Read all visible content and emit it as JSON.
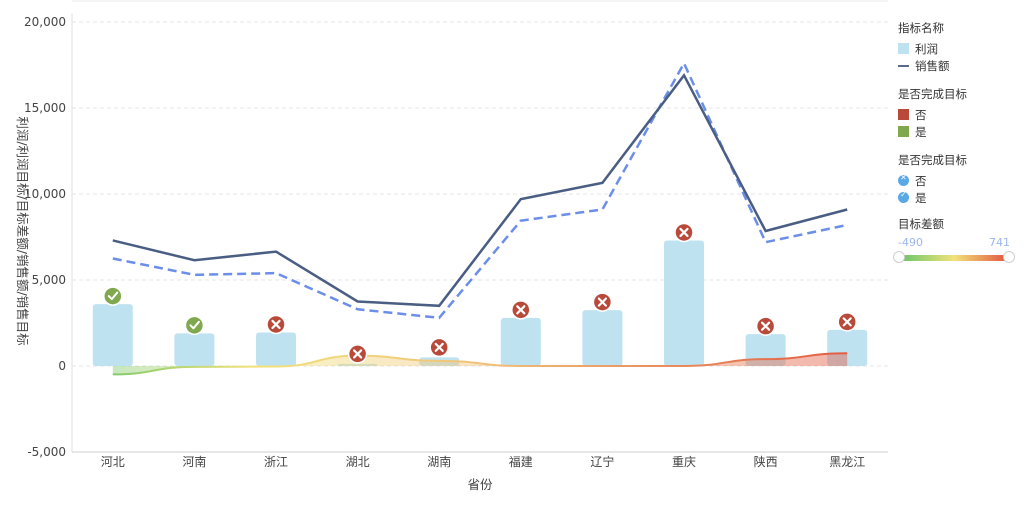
{
  "chart_data": {
    "type": "bar",
    "categories": [
      "河北",
      "河南",
      "浙江",
      "湖北",
      "湖南",
      "福建",
      "辽宁",
      "重庆",
      "陕西",
      "黑龙江"
    ],
    "series": [
      {
        "name": "利润",
        "type": "bar",
        "values": [
          3600,
          1900,
          1950,
          120,
          500,
          2800,
          3250,
          7300,
          1850,
          2100
        ]
      },
      {
        "name": "销售额",
        "type": "line",
        "values": [
          7300,
          6150,
          6650,
          3750,
          3500,
          9700,
          10650,
          16900,
          7850,
          9100
        ]
      },
      {
        "name": "销售目标",
        "type": "line",
        "values": [
          6250,
          5300,
          5400,
          3300,
          2800,
          8450,
          9100,
          17600,
          7200,
          8200
        ]
      },
      {
        "name": "目标差额",
        "type": "area",
        "values": [
          -490,
          -50,
          -30,
          600,
          300,
          0,
          0,
          0,
          400,
          741
        ]
      }
    ],
    "target_met": [
      "是",
      "是",
      "否",
      "否",
      "否",
      "否",
      "否",
      "否",
      "否",
      "否"
    ],
    "ylabel": "利润/利润目标/目标差额/销售额/销售目标",
    "xlabel": "省份",
    "ylim": [
      -5000,
      20000
    ],
    "yticks": [
      "20,000",
      "15,000",
      "10,000",
      "5,000",
      "0",
      "-5,000"
    ],
    "ytick_values": [
      20000,
      15000,
      10000,
      5000,
      0,
      -5000
    ],
    "grid": true,
    "legend_position": "right",
    "colors": {
      "bar": "#bfe2f1",
      "sales_line": "#4a5d82",
      "target_line": "#6b8ee8",
      "no": "#b94a3a",
      "yes": "#7fa84f",
      "gradient": [
        "#62c46a",
        "#f2e27a",
        "#e0503d"
      ]
    }
  },
  "legend": {
    "groups": [
      {
        "title": "指标名称",
        "items": [
          {
            "label": "利润",
            "swatch": "box",
            "color": "#bfe2f1"
          },
          {
            "label": "销售额",
            "swatch": "dash",
            "color": "#5a6b8c"
          }
        ]
      },
      {
        "title": "是否完成目标",
        "items": [
          {
            "label": "否",
            "swatch": "box",
            "color": "#b94a3a"
          },
          {
            "label": "是",
            "swatch": "box",
            "color": "#7fa84f"
          }
        ]
      },
      {
        "title": "是否完成目标",
        "items": [
          {
            "label": "否",
            "swatch": "circle-x",
            "color": "#5aa9e6"
          },
          {
            "label": "是",
            "swatch": "circle-check",
            "color": "#5aa9e6"
          }
        ]
      }
    ],
    "gradient": {
      "title": "目标差额",
      "min": "-490",
      "max": "741"
    }
  }
}
